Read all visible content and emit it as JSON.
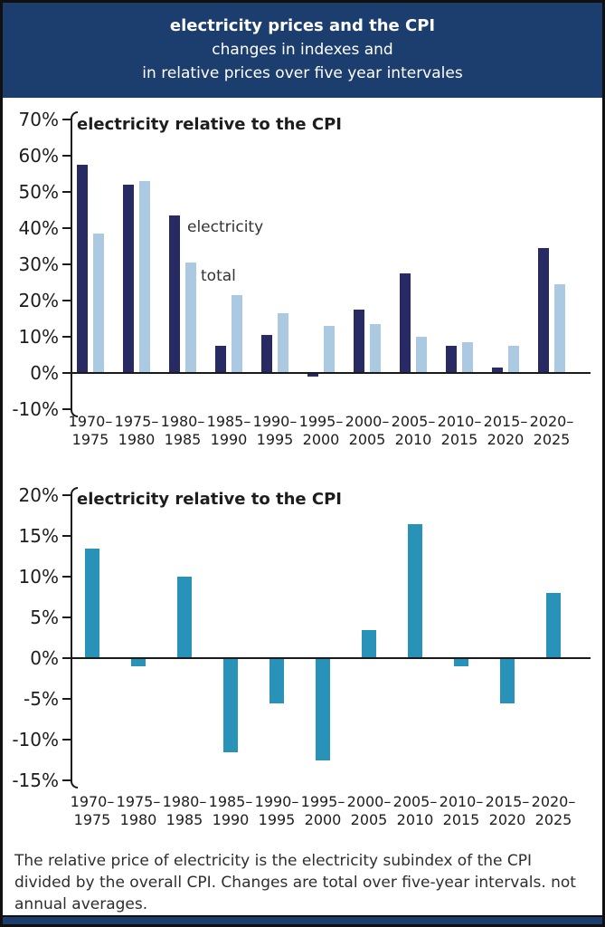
{
  "header": {
    "title": "electricity prices and the CPI",
    "subtitle_line1": "changes in indexes and",
    "subtitle_line2": "in relative prices over five year intervales"
  },
  "footer": {
    "note": "The relative price of electricity is the electricity subindex of the CPI divided by the overall CPI. Changes are total over five-year intervals. not annual averages."
  },
  "colors": {
    "header_bg": "#1c3e6e",
    "electricity_bar": "#272a63",
    "total_bar": "#abc9e0",
    "relative_bar": "#2992b8",
    "axis": "#1a1a1a",
    "text": "#1d1d1d"
  },
  "chart_data": [
    {
      "type": "bar",
      "title": "electricity relative to the CPI",
      "categories": [
        "1970–1975",
        "1975–1980",
        "1980–1985",
        "1985–1990",
        "1990–1995",
        "1995–2000",
        "2000–2005",
        "2005–2010",
        "2010–2015",
        "2015–2020",
        "2020–2025"
      ],
      "series": [
        {
          "name": "electricity",
          "color": "#272a63",
          "values": [
            57.5,
            52,
            43.5,
            7.5,
            10.5,
            -1,
            17.5,
            27.5,
            7.5,
            1.5,
            34.5
          ]
        },
        {
          "name": "total",
          "color": "#abc9e0",
          "values": [
            38.5,
            53,
            30.5,
            21.5,
            16.5,
            13,
            13.5,
            10,
            8.5,
            7.5,
            24.5
          ]
        }
      ],
      "ylim": [
        -10,
        70
      ],
      "ytick_step": 10,
      "unit": "%",
      "xlabel": "",
      "ylabel": "",
      "grid": false,
      "legend_position": "inline"
    },
    {
      "type": "bar",
      "title": "electricity relative to the CPI",
      "categories": [
        "1970–1975",
        "1975–1980",
        "1980–1985",
        "1985–1990",
        "1990–1995",
        "1995–2000",
        "2000–2005",
        "2005–2010",
        "2010–2015",
        "2015–2020",
        "2020–2025"
      ],
      "series": [
        {
          "name": "electricity relative to the CPI",
          "color": "#2992b8",
          "values": [
            13.5,
            -1,
            10,
            -11.5,
            -5.5,
            -12.5,
            3.5,
            16.5,
            -1,
            -5.5,
            8
          ]
        }
      ],
      "ylim": [
        -15,
        20
      ],
      "ytick_step": 5,
      "unit": "%",
      "xlabel": "",
      "ylabel": "",
      "grid": false,
      "legend_position": "none"
    }
  ]
}
